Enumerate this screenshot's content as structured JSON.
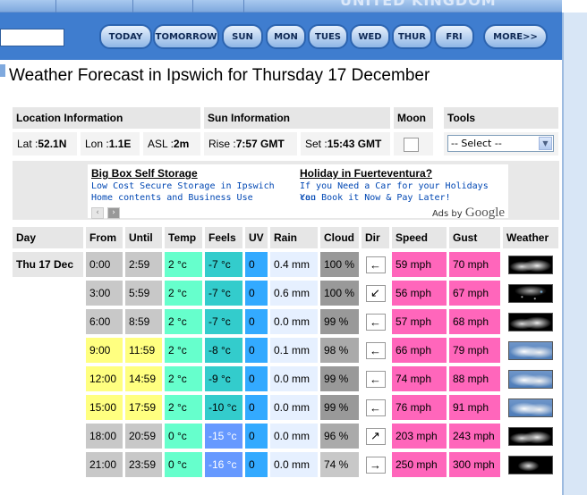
{
  "header": {
    "country": "UNITED KINGDOM"
  },
  "nav": [
    "TODAY",
    "TOMORROW",
    "SUN",
    "MON",
    "TUES",
    "WED",
    "THUR",
    "FRI",
    "MORE>>"
  ],
  "title": "Weather Forecast in Ipswich for Thursday 17 December",
  "location": {
    "heading": "Location Information",
    "lat_label": "Lat : ",
    "lat": "52.1N",
    "lon_label": "Lon : ",
    "lon": "1.1E",
    "asl_label": "ASL : ",
    "asl": "2m"
  },
  "sun": {
    "heading": "Sun Information",
    "rise_label": "Rise : ",
    "rise": "7:57 GMT",
    "set_label": "Set : ",
    "set": "15:43 GMT"
  },
  "moon": {
    "heading": "Moon"
  },
  "tools": {
    "heading": "Tools",
    "select": "-- Select --"
  },
  "ads": [
    {
      "title": "Big Box Self Storage",
      "line1": "Low Cost Secure Storage in Ipswich",
      "line2": "Home contents and Business Use"
    },
    {
      "title": "Holiday in Fuerteventura?",
      "line1": "If you Need a Car for your Holidays You",
      "line2": "can Book it Now & Pay Later!"
    }
  ],
  "ads_by": "Ads by",
  "ads_brand": "Google",
  "table": {
    "headers": [
      "Day",
      "From",
      "Until",
      "Temp",
      "Feels",
      "UV",
      "Rain",
      "Cloud",
      "Dir",
      "Speed",
      "Gust",
      "Weather"
    ],
    "day": "Thu 17 Dec",
    "rows": [
      {
        "from": "0:00",
        "until": "2:59",
        "temp": "2 °c",
        "feels": "-7 °c",
        "uv": "0",
        "rain": "0.4 mm",
        "cloud": "100 %",
        "dir": "←",
        "speed": "59 mph",
        "gust": "70 mph",
        "wx": "night-cloudy-icon"
      },
      {
        "from": "3:00",
        "until": "5:59",
        "temp": "2 °c",
        "feels": "-7 °c",
        "uv": "0",
        "rain": "0.6 mm",
        "cloud": "100 %",
        "dir": "↙",
        "speed": "56 mph",
        "gust": "67 mph",
        "wx": "night-sleet-icon"
      },
      {
        "from": "6:00",
        "until": "8:59",
        "temp": "2 °c",
        "feels": "-7 °c",
        "uv": "0",
        "rain": "0.0 mm",
        "cloud": "99 %",
        "dir": "←",
        "speed": "57 mph",
        "gust": "68 mph",
        "wx": "night-cloudy-icon"
      },
      {
        "from": "9:00",
        "until": "11:59",
        "temp": "2 °c",
        "feels": "-8 °c",
        "uv": "0",
        "rain": "0.1 mm",
        "cloud": "98 %",
        "dir": "←",
        "speed": "66 mph",
        "gust": "79 mph",
        "wx": "day-cloudy-icon"
      },
      {
        "from": "12:00",
        "until": "14:59",
        "temp": "2 °c",
        "feels": "-9 °c",
        "uv": "0",
        "rain": "0.0 mm",
        "cloud": "99 %",
        "dir": "←",
        "speed": "74 mph",
        "gust": "88 mph",
        "wx": "day-cloudy-icon"
      },
      {
        "from": "15:00",
        "until": "17:59",
        "temp": "2 °c",
        "feels": "-10 °c",
        "uv": "0",
        "rain": "0.0 mm",
        "cloud": "99 %",
        "dir": "←",
        "speed": "76 mph",
        "gust": "91 mph",
        "wx": "day-cloudy-icon"
      },
      {
        "from": "18:00",
        "until": "20:59",
        "temp": "0 °c",
        "feels": "-15 °c",
        "uv": "0",
        "rain": "0.0 mm",
        "cloud": "96 %",
        "dir": "↗",
        "speed": "203 mph",
        "gust": "243 mph",
        "wx": "night-cloudy-icon"
      },
      {
        "from": "21:00",
        "until": "23:59",
        "temp": "0 °c",
        "feels": "-16 °c",
        "uv": "0",
        "rain": "0.0 mm",
        "cloud": "74 %",
        "dir": "→",
        "speed": "250 mph",
        "gust": "300 mph",
        "wx": "night-partly-cloudy-icon"
      }
    ]
  },
  "colors": {
    "time_night": "#c8c8c8",
    "time_day": "#ffff80",
    "temp": "#66ffcc",
    "feels_cold": "#33cccc",
    "feels_colder": "#6699ff",
    "uv": "#33aaff",
    "rain": "#e6f0ff",
    "speed": "#ff66bb",
    "gust": "#ff66bb",
    "nav_blue": "#3f7dcf"
  }
}
